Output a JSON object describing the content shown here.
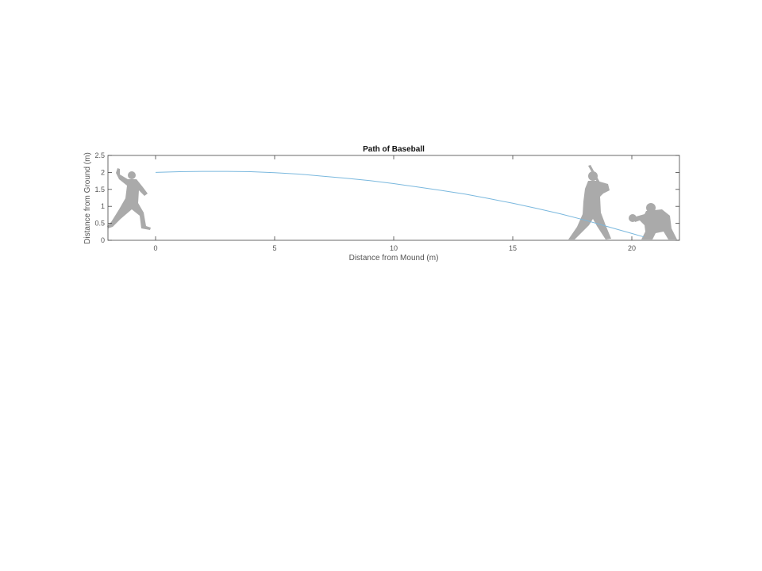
{
  "chart_data": {
    "type": "line",
    "title": "Path of Baseball",
    "xlabel": "Distance from Mound (m)",
    "ylabel": "Distance from Ground (m)",
    "xlim": [
      -2,
      22
    ],
    "ylim": [
      0,
      2.5
    ],
    "xticks": [
      0,
      5,
      10,
      15,
      20
    ],
    "yticks": [
      0,
      0.5,
      1,
      1.5,
      2,
      2.5
    ],
    "grid": false,
    "series": [
      {
        "color": "#7ab8de",
        "x": [
          0,
          1,
          2,
          3,
          4,
          5,
          6,
          7,
          8,
          9,
          10,
          11,
          12,
          13,
          14,
          15,
          16,
          17,
          18,
          19,
          20,
          20.5
        ],
        "y": [
          2.0,
          2.02,
          2.03,
          2.03,
          2.02,
          1.99,
          1.95,
          1.89,
          1.83,
          1.76,
          1.67,
          1.57,
          1.47,
          1.36,
          1.23,
          1.09,
          0.94,
          0.78,
          0.6,
          0.4,
          0.2,
          0.1
        ]
      }
    ],
    "silhouettes": [
      {
        "icon": "pitcher-silhouette-icon",
        "x": -1.0
      },
      {
        "icon": "batter-silhouette-icon",
        "x": 18.2
      },
      {
        "icon": "catcher-silhouette-icon",
        "x": 21.2
      }
    ]
  }
}
